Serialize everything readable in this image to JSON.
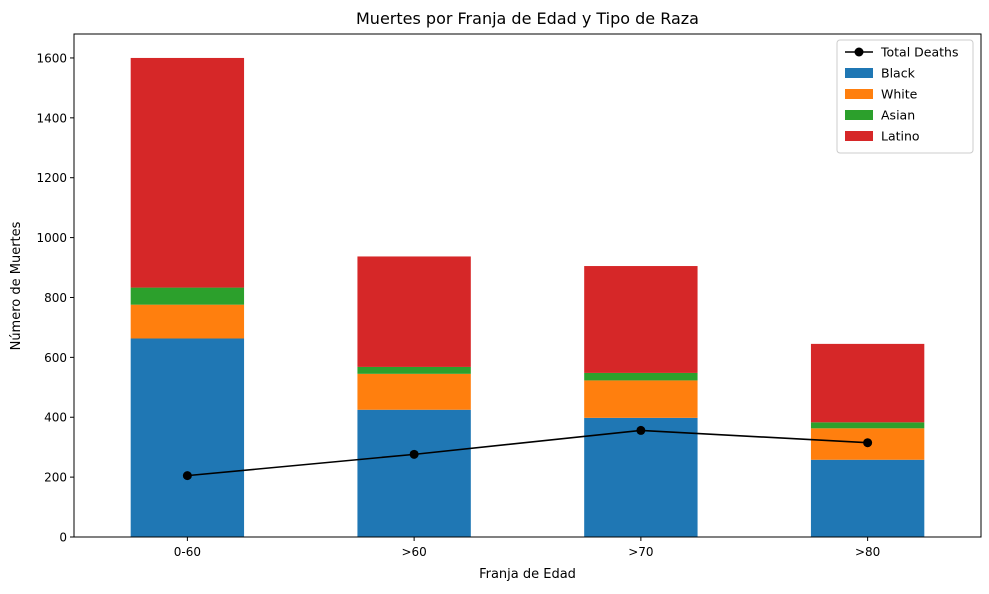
{
  "chart_data": {
    "type": "bar",
    "stacked": true,
    "title": "Muertes por Franja de Edad y Tipo de Raza",
    "xlabel": "Franja de Edad",
    "ylabel": "Número de Muertes",
    "categories": [
      "0-60",
      ">60",
      ">70",
      ">80"
    ],
    "ylim": [
      0,
      1680
    ],
    "yticks": [
      0,
      200,
      400,
      600,
      800,
      1000,
      1200,
      1400,
      1600
    ],
    "grid": false,
    "legend_position": "top-right",
    "series": [
      {
        "name": "Black",
        "color": "#1f77b4",
        "values": [
          663,
          425,
          398,
          258
        ]
      },
      {
        "name": "White",
        "color": "#ff7f0e",
        "values": [
          113,
          120,
          125,
          105
        ]
      },
      {
        "name": "Asian",
        "color": "#2ca02c",
        "values": [
          57,
          23,
          25,
          20
        ]
      },
      {
        "name": "Latino",
        "color": "#d62728",
        "values": [
          767,
          369,
          357,
          262
        ]
      }
    ],
    "line_series": {
      "name": "Total Deaths",
      "color": "#000000",
      "values": [
        205,
        276,
        356,
        315
      ]
    }
  }
}
